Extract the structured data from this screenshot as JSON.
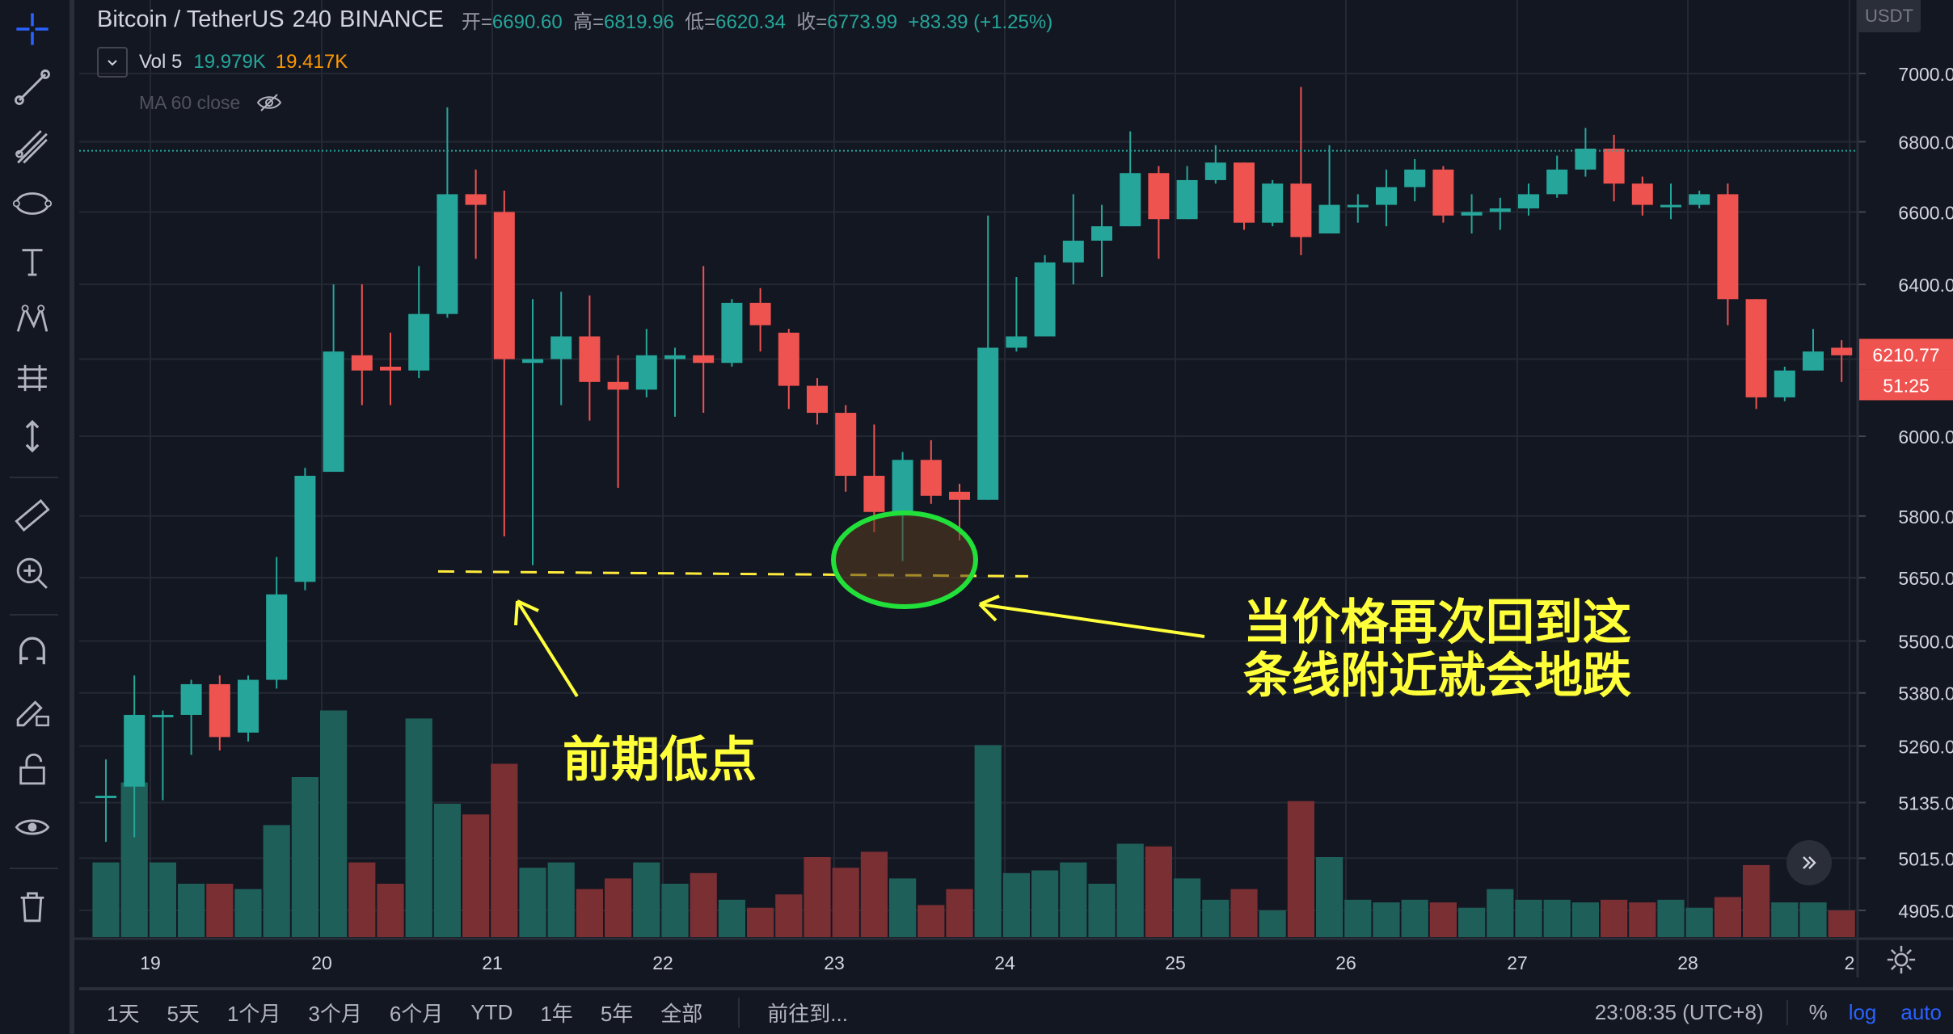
{
  "legend": {
    "symbol": "Bitcoin / TetherUS",
    "interval": "240",
    "exchange": "BINANCE",
    "open_label": "开=",
    "open": "6690.60",
    "high_label": "高=",
    "high": "6819.96",
    "low_label": "低=",
    "low": "6620.34",
    "close_label": "收=",
    "close": "6773.99",
    "change": "+83.39 (+1.25%)",
    "vol_label": "Vol 5",
    "vol_value": "19.979K",
    "vol_ma": "19.417K",
    "ma_label": "MA 60 close"
  },
  "price_axis": {
    "unit": "USDT",
    "current_price": "6210.77",
    "countdown": "51:25"
  },
  "annotations": {
    "left": "前期低点",
    "right_line1": "当价格再次回到这",
    "right_line2": "条线附近就会地跌"
  },
  "bottom_bar": {
    "ranges": [
      "1天",
      "5天",
      "1个月",
      "3个月",
      "6个月",
      "YTD",
      "1年",
      "5年",
      "全部"
    ],
    "goto": "前往到...",
    "clock": "23:08:35 (UTC+8)",
    "percent": "%",
    "log": "log",
    "auto": "auto"
  },
  "chart_data": {
    "type": "candlestick",
    "title": "Bitcoin / TetherUS 240 BINANCE",
    "xlabel": "",
    "ylabel": "",
    "x_ticks": [
      "19",
      "20",
      "21",
      "22",
      "23",
      "24",
      "25",
      "26",
      "27",
      "28",
      "2"
    ],
    "y_ticks": [
      "7000.00",
      "6800.00",
      "6600.00",
      "6400.00",
      "6200.00",
      "6000.00",
      "5800.00",
      "5650.00",
      "5500.00",
      "5380.00",
      "5260.00",
      "5135.00",
      "5015.00",
      "4905.00"
    ],
    "y_scale": "log",
    "y_range": [
      4860,
      7150
    ],
    "grid": true,
    "colors": {
      "up": "#26a69a",
      "down": "#ef5350",
      "vol_up": "#1f5f5a",
      "vol_down": "#7a2f33"
    },
    "reference_line": 6773.99,
    "support_line": 5665,
    "ohlc": [
      [
        5150,
        5150,
        5230,
        5050,
        28
      ],
      [
        5170,
        5330,
        5420,
        5060,
        58
      ],
      [
        5330,
        5330,
        5340,
        5140,
        28
      ],
      [
        5330,
        5400,
        5410,
        5240,
        20
      ],
      [
        5400,
        5280,
        5420,
        5250,
        20
      ],
      [
        5290,
        5410,
        5420,
        5270,
        18
      ],
      [
        5410,
        5610,
        5700,
        5390,
        42
      ],
      [
        5640,
        5900,
        5920,
        5620,
        60
      ],
      [
        5910,
        6220,
        6400,
        5950,
        85
      ],
      [
        6210,
        6170,
        6400,
        6080,
        28
      ],
      [
        6180,
        6170,
        6270,
        6080,
        20
      ],
      [
        6170,
        6320,
        6450,
        6150,
        82
      ],
      [
        6320,
        6650,
        6900,
        6310,
        50
      ],
      [
        6650,
        6620,
        6720,
        6470,
        46
      ],
      [
        6600,
        6200,
        6660,
        5750,
        65
      ],
      [
        6190,
        6200,
        6360,
        5680,
        26
      ],
      [
        6200,
        6260,
        6380,
        6080,
        28
      ],
      [
        6260,
        6140,
        6370,
        6040,
        18
      ],
      [
        6140,
        6120,
        6210,
        5870,
        22
      ],
      [
        6120,
        6210,
        6280,
        6100,
        28
      ],
      [
        6200,
        6210,
        6230,
        6050,
        20
      ],
      [
        6210,
        6190,
        6450,
        6060,
        24
      ],
      [
        6190,
        6350,
        6360,
        6180,
        14
      ],
      [
        6350,
        6290,
        6390,
        6220,
        11
      ],
      [
        6270,
        6130,
        6280,
        6070,
        16
      ],
      [
        6130,
        6060,
        6150,
        6030,
        30
      ],
      [
        6060,
        5900,
        6080,
        5860,
        26
      ],
      [
        5900,
        5810,
        6030,
        5760,
        32
      ],
      [
        5810,
        5940,
        5960,
        5690,
        22
      ],
      [
        5940,
        5850,
        5990,
        5830,
        12
      ],
      [
        5860,
        5840,
        5880,
        5740,
        18
      ],
      [
        5840,
        6230,
        6590,
        5840,
        72
      ],
      [
        6230,
        6260,
        6420,
        6220,
        24
      ],
      [
        6260,
        6460,
        6480,
        6260,
        25
      ],
      [
        6460,
        6520,
        6650,
        6400,
        28
      ],
      [
        6520,
        6560,
        6620,
        6420,
        20
      ],
      [
        6560,
        6710,
        6830,
        6560,
        35
      ],
      [
        6710,
        6580,
        6730,
        6470,
        34
      ],
      [
        6580,
        6690,
        6730,
        6580,
        22
      ],
      [
        6690,
        6740,
        6790,
        6680,
        14
      ],
      [
        6740,
        6570,
        6740,
        6550,
        18
      ],
      [
        6570,
        6680,
        6690,
        6560,
        10
      ],
      [
        6680,
        6530,
        6960,
        6480,
        51
      ],
      [
        6540,
        6620,
        6790,
        6540,
        30
      ],
      [
        6620,
        6620,
        6650,
        6570,
        14
      ],
      [
        6620,
        6670,
        6720,
        6560,
        13
      ],
      [
        6670,
        6720,
        6750,
        6630,
        14
      ],
      [
        6720,
        6590,
        6730,
        6570,
        13
      ],
      [
        6590,
        6600,
        6650,
        6540,
        11
      ],
      [
        6600,
        6610,
        6640,
        6550,
        18
      ],
      [
        6610,
        6650,
        6680,
        6590,
        14
      ],
      [
        6650,
        6720,
        6760,
        6640,
        14
      ],
      [
        6720,
        6780,
        6840,
        6700,
        13
      ],
      [
        6780,
        6680,
        6820,
        6630,
        14
      ],
      [
        6680,
        6620,
        6700,
        6590,
        13
      ],
      [
        6620,
        6620,
        6680,
        6580,
        14
      ],
      [
        6620,
        6650,
        6660,
        6610,
        11
      ],
      [
        6650,
        6360,
        6680,
        6290,
        15
      ],
      [
        6360,
        6100,
        6360,
        6070,
        27
      ],
      [
        6100,
        6170,
        6180,
        6090,
        13
      ],
      [
        6170,
        6220,
        6280,
        6170,
        13
      ],
      [
        6230,
        6210,
        6250,
        6140,
        10
      ]
    ]
  }
}
